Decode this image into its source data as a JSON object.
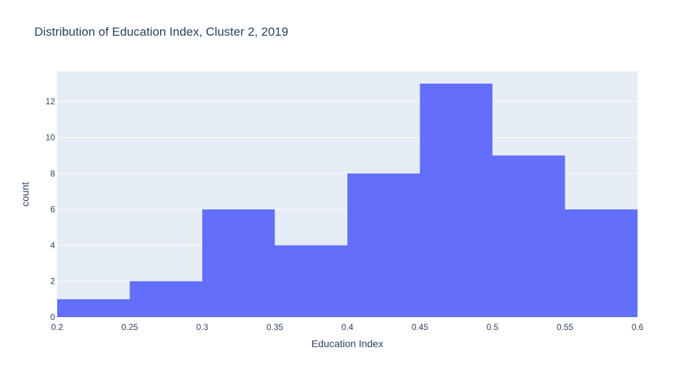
{
  "chart_data": {
    "type": "bar",
    "title": "Distribution of Education Index, Cluster 2, 2019",
    "xlabel": "Education Index",
    "ylabel": "count",
    "bins": [
      {
        "start": 0.2,
        "end": 0.25,
        "count": 1
      },
      {
        "start": 0.25,
        "end": 0.3,
        "count": 2
      },
      {
        "start": 0.3,
        "end": 0.35,
        "count": 6
      },
      {
        "start": 0.35,
        "end": 0.4,
        "count": 4
      },
      {
        "start": 0.4,
        "end": 0.45,
        "count": 8
      },
      {
        "start": 0.45,
        "end": 0.5,
        "count": 13
      },
      {
        "start": 0.5,
        "end": 0.55,
        "count": 9
      },
      {
        "start": 0.55,
        "end": 0.6,
        "count": 6
      }
    ],
    "xlim": [
      0.2,
      0.6
    ],
    "ylim": [
      0,
      13.68
    ],
    "xticks": [
      "0.2",
      "0.25",
      "0.3",
      "0.35",
      "0.4",
      "0.45",
      "0.5",
      "0.55",
      "0.6"
    ],
    "yticks": [
      "0",
      "2",
      "4",
      "6",
      "8",
      "10",
      "12"
    ],
    "grid": true,
    "colors": {
      "bar": "#636efa",
      "plot_bg": "#e5ecf6",
      "grid": "#ffffff",
      "text": "#2a3f5f"
    }
  }
}
